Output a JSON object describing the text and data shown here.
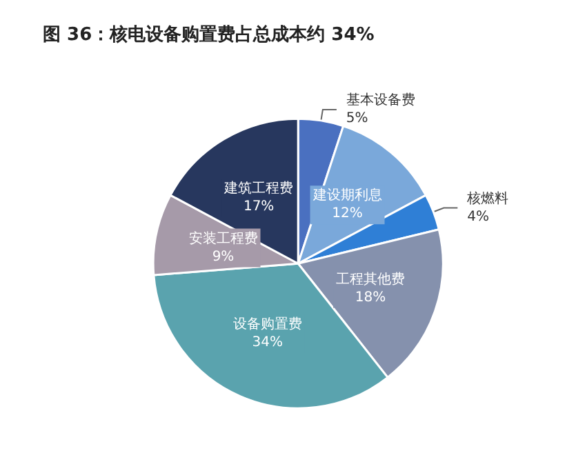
{
  "chart_data": {
    "type": "pie",
    "title": "图 36：核电设备购置费占总成本约 34%",
    "categories": [
      "基本设备费",
      "建设期利息",
      "核燃料",
      "工程其他费",
      "设备购置费",
      "安装工程费",
      "建筑工程费"
    ],
    "values": [
      5,
      12,
      4,
      18,
      34,
      9,
      17
    ],
    "value_labels": [
      "5%",
      "12%",
      "4%",
      "18%",
      "34%",
      "9%",
      "17%"
    ],
    "colors": [
      "#4a70c0",
      "#7aa8da",
      "#2f7fd6",
      "#8591ad",
      "#5aa3ae",
      "#a69aa9",
      "#27375e"
    ],
    "legend": false
  }
}
